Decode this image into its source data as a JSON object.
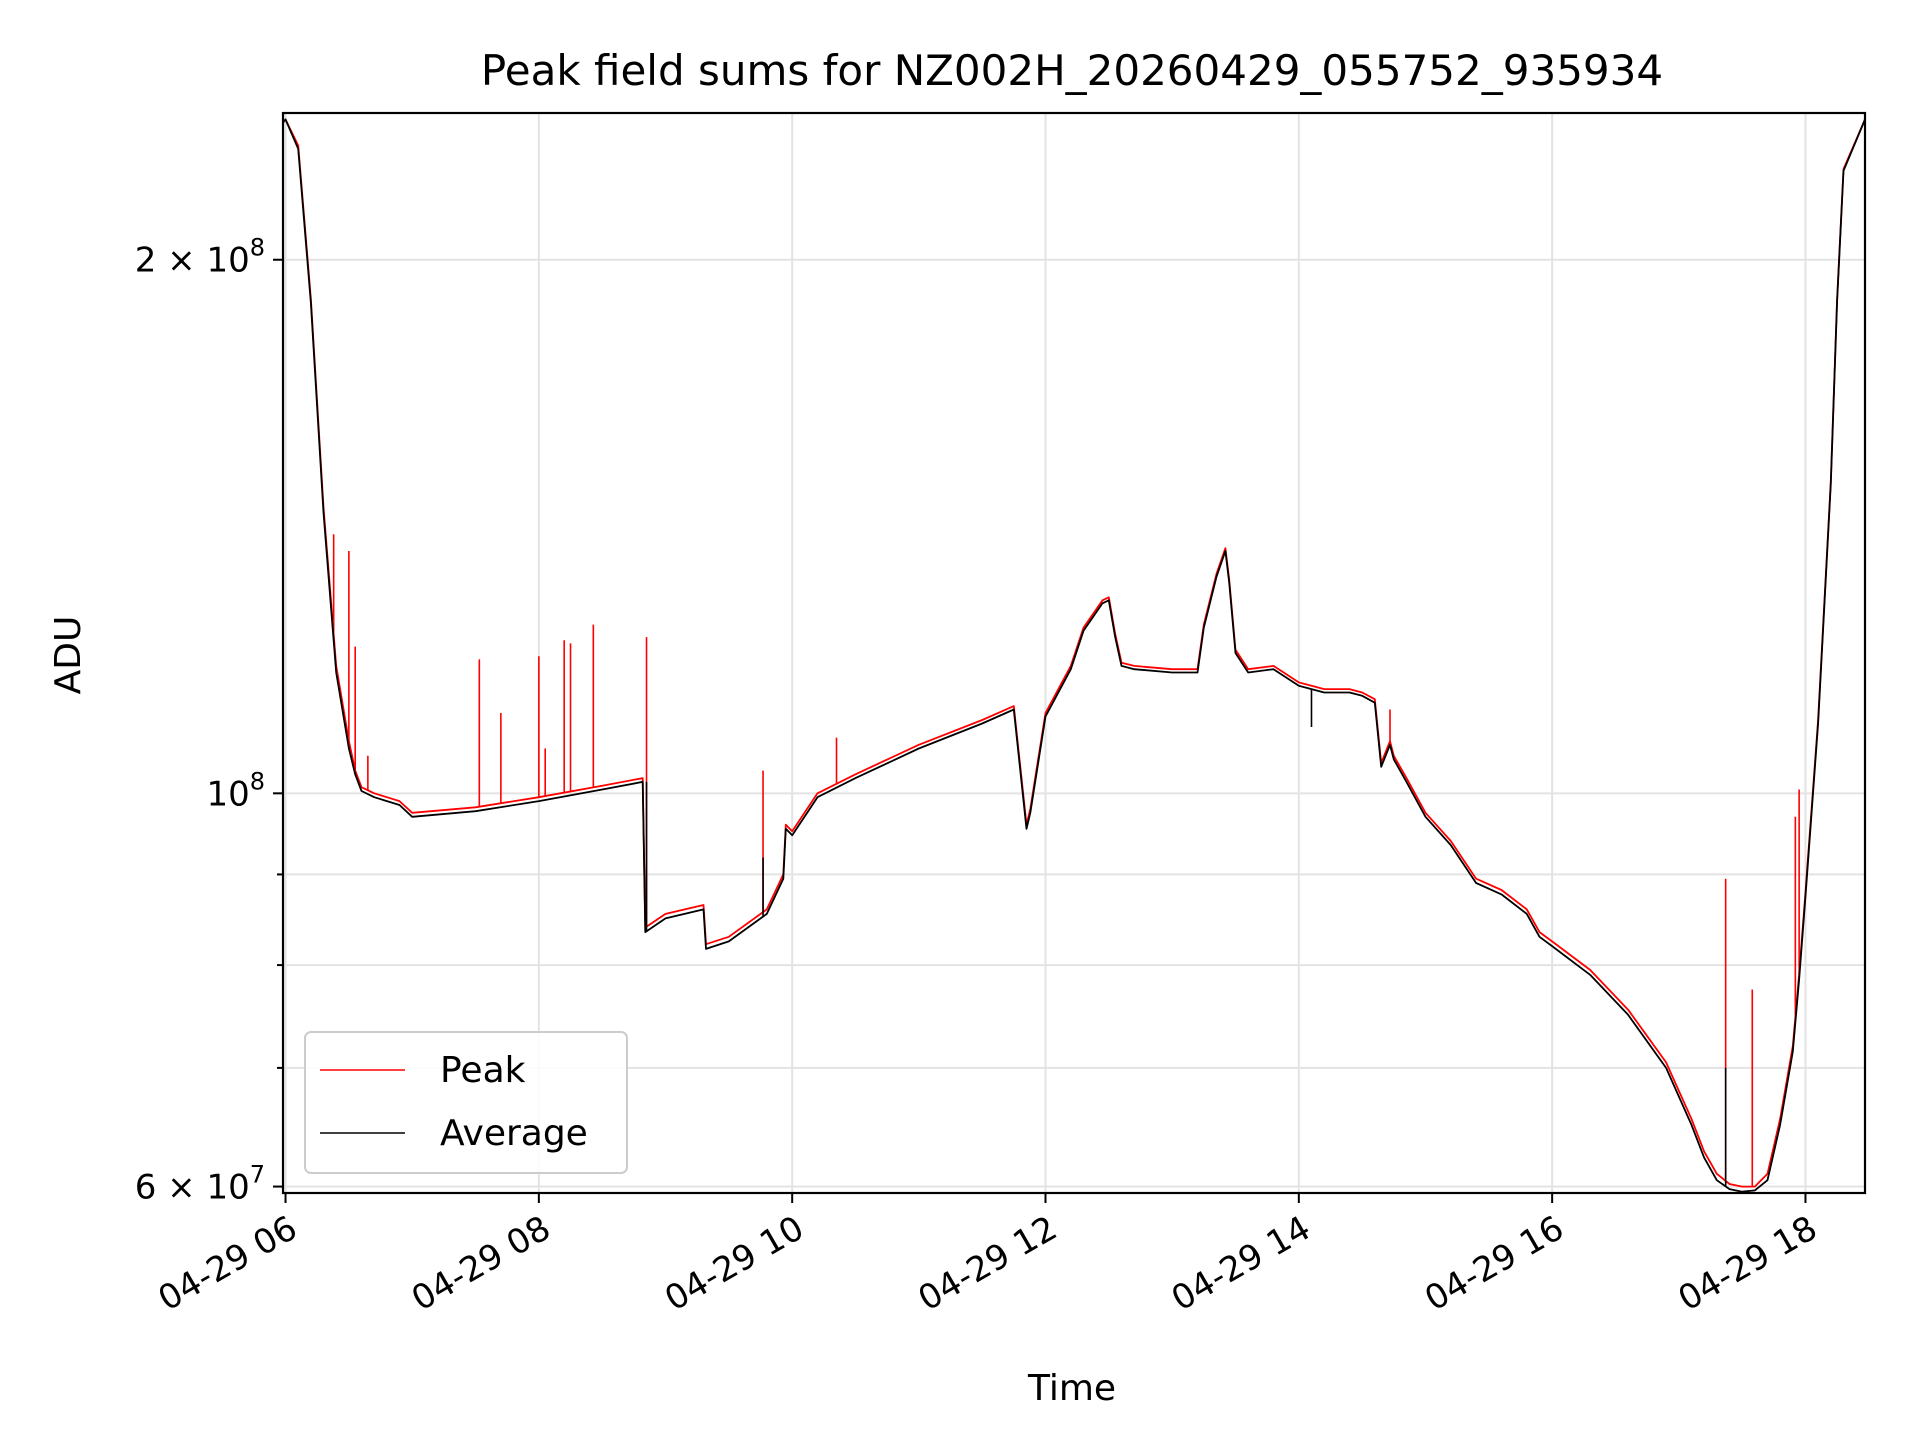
{
  "chart_data": {
    "type": "line",
    "title": "Peak field sums for NZ002H_20260429_055752_935934",
    "xlabel": "Time",
    "ylabel": "ADU",
    "y_scale": "log",
    "ylim": [
      59500000,
      242000000
    ],
    "xlim_hours": [
      5.98,
      18.47
    ],
    "x_ticks": [
      {
        "hour": 6,
        "label": "04-29 06"
      },
      {
        "hour": 8,
        "label": "04-29 08"
      },
      {
        "hour": 10,
        "label": "04-29 10"
      },
      {
        "hour": 12,
        "label": "04-29 12"
      },
      {
        "hour": 14,
        "label": "04-29 14"
      },
      {
        "hour": 16,
        "label": "04-29 16"
      },
      {
        "hour": 18,
        "label": "04-29 18"
      }
    ],
    "y_major_ticks": [
      {
        "value": 60000000,
        "mantissa": "6",
        "exponent": "7"
      },
      {
        "value": 100000000,
        "mantissa": "",
        "exponent": "8"
      },
      {
        "value": 200000000,
        "mantissa": "2",
        "exponent": "8"
      }
    ],
    "y_minor_gridlines": [
      70000000,
      80000000,
      90000000
    ],
    "grid": true,
    "legend_position": "lower-left",
    "series": [
      {
        "name": "Peak",
        "color": "#ff0000",
        "x_hours": [
          5.98,
          6.0,
          6.1,
          6.2,
          6.3,
          6.4,
          6.5,
          6.55,
          6.6,
          6.7,
          6.8,
          6.9,
          7.0,
          7.5,
          8.0,
          8.5,
          8.82,
          8.84,
          9.0,
          9.3,
          9.32,
          9.5,
          9.8,
          9.93,
          9.95,
          10.0,
          10.2,
          10.5,
          11.0,
          11.5,
          11.75,
          11.85,
          11.88,
          12.0,
          12.2,
          12.3,
          12.45,
          12.5,
          12.55,
          12.6,
          12.7,
          13.0,
          13.2,
          13.25,
          13.35,
          13.42,
          13.45,
          13.5,
          13.6,
          13.8,
          14.0,
          14.2,
          14.4,
          14.5,
          14.6,
          14.65,
          14.72,
          14.75,
          14.85,
          15.0,
          15.2,
          15.4,
          15.6,
          15.8,
          15.9,
          16.0,
          16.3,
          16.6,
          16.9,
          17.1,
          17.2,
          17.3,
          17.4,
          17.5,
          17.6,
          17.7,
          17.8,
          17.9,
          17.95,
          18.0,
          18.1,
          18.2,
          18.25,
          18.3,
          18.47
        ],
        "values": [
          239000000,
          240000000,
          232000000,
          190000000,
          145000000,
          118000000,
          107000000,
          103000000,
          100800000,
          100000000,
          99500000,
          99000000,
          97500000,
          98200000,
          99500000,
          101000000,
          102000000,
          84000000,
          85500000,
          86500000,
          82200000,
          83000000,
          86000000,
          90000000,
          96000000,
          95200000,
          100000000,
          102500000,
          106500000,
          110000000,
          112000000,
          96000000,
          98000000,
          111000000,
          118000000,
          124000000,
          128500000,
          129000000,
          123000000,
          118500000,
          118000000,
          117500000,
          117500000,
          124500000,
          133000000,
          137500000,
          132000000,
          120500000,
          117500000,
          118000000,
          115500000,
          114500000,
          114500000,
          114000000,
          113000000,
          104000000,
          107000000,
          105000000,
          102000000,
          97500000,
          94000000,
          89500000,
          88200000,
          86000000,
          83500000,
          82500000,
          79500000,
          75500000,
          70500000,
          65500000,
          62800000,
          61000000,
          60200000,
          60000000,
          60000000,
          61000000,
          65500000,
          72000000,
          79000000,
          88000000,
          110000000,
          150000000,
          190000000,
          225000000,
          240000000
        ],
        "spikes": [
          {
            "x_hour": 6.38,
            "value": 140000000
          },
          {
            "x_hour": 6.5,
            "value": 137000000
          },
          {
            "x_hour": 6.55,
            "value": 121000000
          },
          {
            "x_hour": 6.65,
            "value": 105000000
          },
          {
            "x_hour": 7.53,
            "value": 119000000
          },
          {
            "x_hour": 7.7,
            "value": 111000000
          },
          {
            "x_hour": 8.0,
            "value": 119500000
          },
          {
            "x_hour": 8.05,
            "value": 106000000
          },
          {
            "x_hour": 8.2,
            "value": 122000000
          },
          {
            "x_hour": 8.25,
            "value": 121500000
          },
          {
            "x_hour": 8.43,
            "value": 124500000
          },
          {
            "x_hour": 8.85,
            "value": 122500000
          },
          {
            "x_hour": 9.77,
            "value": 103000000
          },
          {
            "x_hour": 10.35,
            "value": 107500000
          },
          {
            "x_hour": 14.72,
            "value": 111500000
          },
          {
            "x_hour": 17.37,
            "value": 89500000
          },
          {
            "x_hour": 17.58,
            "value": 77500000
          },
          {
            "x_hour": 17.92,
            "value": 97000000
          },
          {
            "x_hour": 17.95,
            "value": 100500000
          }
        ]
      },
      {
        "name": "Average",
        "color": "#000000",
        "x_hours": [
          5.98,
          6.0,
          6.1,
          6.2,
          6.3,
          6.4,
          6.5,
          6.55,
          6.6,
          6.7,
          6.8,
          6.9,
          7.0,
          7.5,
          8.0,
          8.5,
          8.82,
          8.84,
          9.0,
          9.3,
          9.32,
          9.5,
          9.8,
          9.93,
          9.95,
          10.0,
          10.2,
          10.5,
          11.0,
          11.5,
          11.75,
          11.85,
          11.88,
          12.0,
          12.2,
          12.3,
          12.45,
          12.5,
          12.55,
          12.6,
          12.7,
          13.0,
          13.2,
          13.25,
          13.35,
          13.42,
          13.45,
          13.5,
          13.6,
          13.8,
          14.0,
          14.2,
          14.4,
          14.5,
          14.6,
          14.65,
          14.72,
          14.75,
          14.85,
          15.0,
          15.2,
          15.4,
          15.6,
          15.8,
          15.9,
          16.0,
          16.3,
          16.6,
          16.9,
          17.1,
          17.2,
          17.3,
          17.4,
          17.5,
          17.6,
          17.7,
          17.8,
          17.9,
          17.95,
          18.0,
          18.1,
          18.2,
          18.25,
          18.3,
          18.47
        ],
        "values": [
          239000000,
          240000000,
          231000000,
          189000000,
          144000000,
          117000000,
          106000000,
          102500000,
          100300000,
          99500000,
          99000000,
          98500000,
          97000000,
          97700000,
          99000000,
          100500000,
          101500000,
          83500000,
          85000000,
          86000000,
          81700000,
          82500000,
          85500000,
          89500000,
          95500000,
          94700000,
          99500000,
          102000000,
          106000000,
          109500000,
          111500000,
          95500000,
          97500000,
          110500000,
          117500000,
          123500000,
          128000000,
          128500000,
          122500000,
          118000000,
          117500000,
          117000000,
          117000000,
          124000000,
          132500000,
          137000000,
          131500000,
          120000000,
          117000000,
          117500000,
          115000000,
          114000000,
          114000000,
          113500000,
          112500000,
          103500000,
          106500000,
          104500000,
          101500000,
          97000000,
          93500000,
          89000000,
          87700000,
          85500000,
          83000000,
          82000000,
          79000000,
          75000000,
          70000000,
          65000000,
          62300000,
          60500000,
          59800000,
          59600000,
          59700000,
          60500000,
          65000000,
          71500000,
          78500000,
          87500000,
          109500000,
          149500000,
          189500000,
          224500000,
          240000000
        ],
        "spikes": [
          {
            "x_hour": 17.37,
            "value": 70000000
          },
          {
            "x_hour": 9.77,
            "value": 92000000
          },
          {
            "x_hour": 8.85,
            "value": 101500000
          },
          {
            "x_hour": 14.1,
            "value": 109000000
          }
        ]
      }
    ]
  }
}
